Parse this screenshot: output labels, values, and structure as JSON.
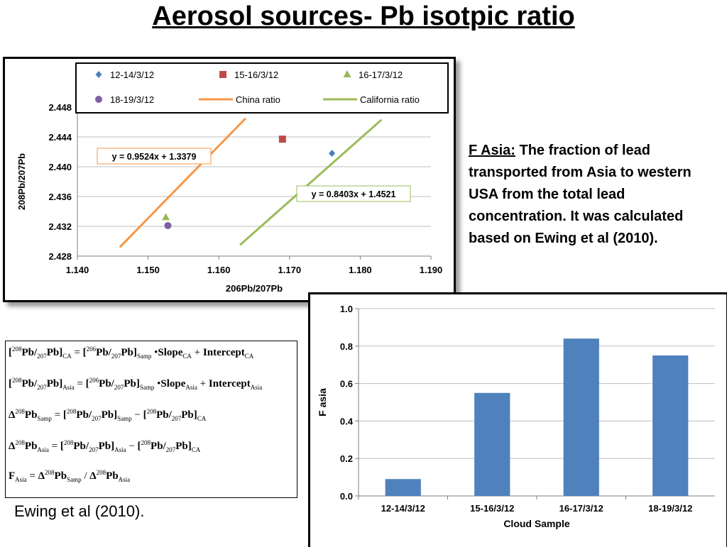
{
  "slide_title": "Aerosol sources- Pb isotpic ratio",
  "description": {
    "lead": "F Asia:",
    "text": " The fraction of lead transported from Asia to western USA from the total lead concentration. It was calculated based on Ewing et al (2010)."
  },
  "citation": "Ewing et al (2010).",
  "formulas": [
    {
      "lhs": "[208Pb/207Pb]CA",
      "op": "=",
      "rhs": "[206Pb/207Pb]Samp • SlopeCA + InterceptCA"
    },
    {
      "lhs": "[208Pb/207Pb]Asia",
      "op": "=",
      "rhs": "[206Pb/207Pb]Samp • SlopeAsia + InterceptAsia"
    },
    {
      "lhs": "Δ208PbSamp",
      "op": "=",
      "rhs": "[208Pb/207Pb]Samp − [208Pb/207Pb]CA"
    },
    {
      "lhs": "Δ208PbAsia",
      "op": "=",
      "rhs": "[208Pb/207Pb]Asia − [208Pb/207Pb]CA"
    },
    {
      "lhs": "FAsia",
      "op": "=",
      "rhs": "Δ208PbSamp / Δ208PbAsia"
    }
  ],
  "chart_data": [
    {
      "type": "scatter",
      "xlabel": "206Pb/207Pb",
      "ylabel": "208Pb/207Pb",
      "xlim": [
        1.14,
        1.19
      ],
      "ylim": [
        2.428,
        2.448
      ],
      "xticks": [
        "1.140",
        "1.150",
        "1.160",
        "1.170",
        "1.180",
        "1.190"
      ],
      "yticks": [
        "2.428",
        "2.432",
        "2.436",
        "2.440",
        "2.444",
        "2.448"
      ],
      "grid": "horizontal",
      "legend_position": "top",
      "series": [
        {
          "name": "12-14/3/12",
          "marker": "diamond",
          "color": "#4a7ebb",
          "points": [
            [
              1.176,
              2.4418
            ]
          ]
        },
        {
          "name": "15-16/3/12",
          "marker": "square",
          "color": "#be4b48",
          "points": [
            [
              1.169,
              2.4437
            ]
          ]
        },
        {
          "name": "16-17/3/12",
          "marker": "triangle",
          "color": "#98b954",
          "points": [
            [
              1.1525,
              2.4332
            ]
          ]
        },
        {
          "name": "18-19/3/12",
          "marker": "circle",
          "color": "#7d60a0",
          "points": [
            [
              1.1528,
              2.4321
            ]
          ]
        },
        {
          "name": "China  ratio",
          "line": true,
          "color": "#f79646",
          "points": [
            [
              1.146,
              2.4292
            ],
            [
              1.1638,
              2.4465
            ]
          ]
        },
        {
          "name": "California ratio",
          "line": true,
          "color": "#9bbb59",
          "points": [
            [
              1.163,
              2.4295
            ],
            [
              1.183,
              2.4463
            ]
          ]
        }
      ],
      "annotations": [
        {
          "text": "y = 0.9524x + 1.3379",
          "border": "#f79646"
        },
        {
          "text": "y = 0.8403x + 1.4521",
          "border": "#9bbb59"
        }
      ]
    },
    {
      "type": "bar",
      "categories": [
        "12-14/3/12",
        "15-16/3/12",
        "16-17/3/12",
        "18-19/3/12"
      ],
      "values": [
        0.09,
        0.55,
        0.84,
        0.75
      ],
      "xlabel": "Cloud Sample",
      "ylabel": "F asia",
      "ylim": [
        0.0,
        1.0
      ],
      "yticks": [
        "0.0",
        "0.2",
        "0.4",
        "0.6",
        "0.8",
        "1.0"
      ],
      "grid": "horizontal",
      "bar_color": "#4f81bd"
    }
  ]
}
